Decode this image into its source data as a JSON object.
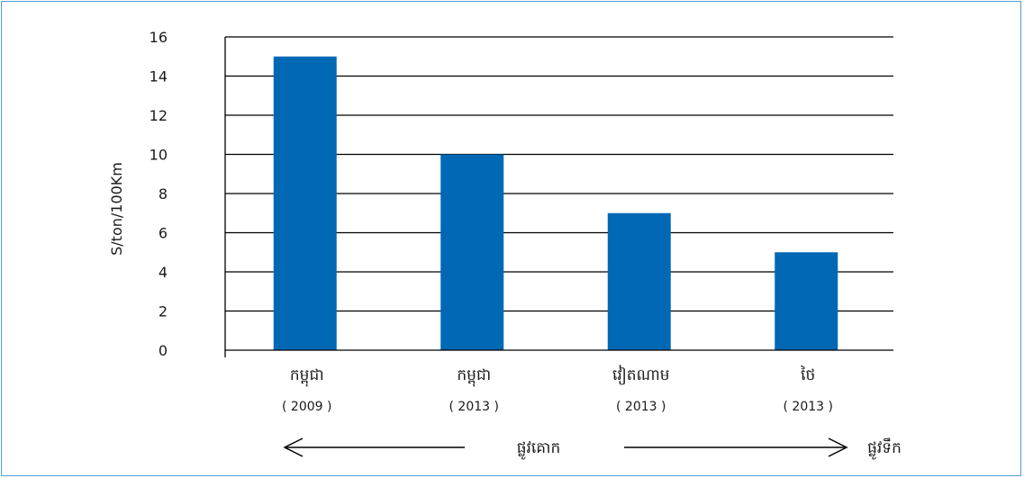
{
  "chart_data": {
    "type": "bar",
    "ylabel": "S/ton/100Km",
    "ylim": [
      0,
      16
    ],
    "yticks": [
      0,
      2,
      4,
      6,
      8,
      10,
      12,
      14,
      16
    ],
    "grid": true,
    "bar_color": "#0068b4",
    "categories": [
      {
        "label": "កម្ពុជា",
        "sub": "( 2009 )"
      },
      {
        "label": "កម្ពុជា",
        "sub": "( 2013 )"
      },
      {
        "label": "វៀតណាម",
        "sub": "( 2013 )"
      },
      {
        "label": "ថៃ",
        "sub": "( 2013 )"
      }
    ],
    "values": [
      15,
      10,
      7,
      5
    ],
    "annotations": {
      "left_arrow_label": "ផ្លូវគោក",
      "right_arrow_label": "ផ្លូវទឹក"
    }
  }
}
